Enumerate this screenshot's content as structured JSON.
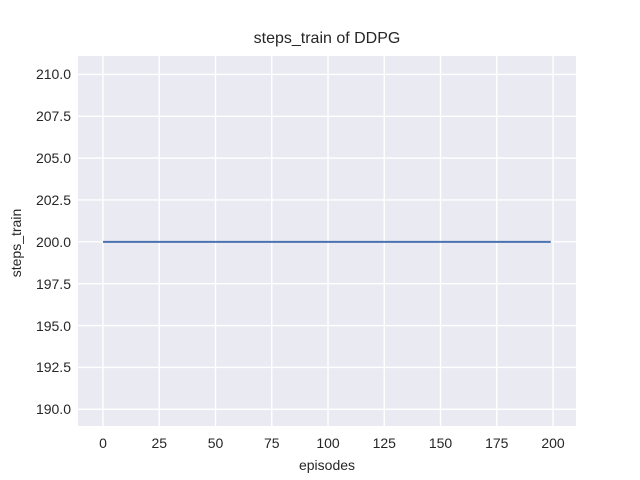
{
  "chart_data": {
    "type": "line",
    "title": "steps_train of DDPG",
    "xlabel": "episodes",
    "ylabel": "steps_train",
    "xticks": [
      0,
      25,
      50,
      75,
      100,
      125,
      150,
      175,
      200
    ],
    "xtick_labels": [
      "0",
      "25",
      "50",
      "75",
      "100",
      "125",
      "150",
      "175",
      "200"
    ],
    "yticks": [
      190.0,
      192.5,
      195.0,
      197.5,
      200.0,
      202.5,
      205.0,
      207.5,
      210.0
    ],
    "ytick_labels": [
      "190.0",
      "192.5",
      "195.0",
      "197.5",
      "200.0",
      "202.5",
      "205.0",
      "207.5",
      "210.0"
    ],
    "xlim": [
      -11.1,
      210.2
    ],
    "ylim": [
      189.0,
      211.1
    ],
    "grid": true,
    "legend": "none",
    "series": [
      {
        "name": "steps_train",
        "x": [
          0,
          199
        ],
        "y": [
          200,
          200
        ],
        "color": "#4c72b0"
      }
    ],
    "colors": {
      "figure_background": "#ffffff",
      "axes_background": "#eaeaf2",
      "grid": "#ffffff",
      "line": "#4c72b0",
      "text": "#262626"
    }
  }
}
